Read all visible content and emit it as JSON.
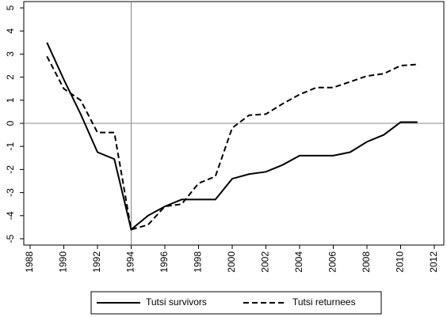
{
  "chart_data": {
    "type": "line",
    "x": [
      1989,
      1990,
      1991,
      1992,
      1993,
      1994,
      1995,
      1996,
      1997,
      1998,
      1999,
      2000,
      2001,
      2002,
      2003,
      2004,
      2005,
      2006,
      2007,
      2008,
      2009,
      2010,
      2011
    ],
    "series": [
      {
        "name": "Tutsi survivors",
        "color": "#000000",
        "dash": "solid",
        "values": [
          3.5,
          1.9,
          0.4,
          -1.25,
          -1.55,
          -4.6,
          -4.0,
          -3.6,
          -3.3,
          -3.3,
          -3.3,
          -2.4,
          -2.2,
          -2.1,
          -1.8,
          -1.4,
          -1.4,
          -1.4,
          -1.25,
          -0.8,
          -0.5,
          0.05,
          0.05
        ]
      },
      {
        "name": "Tutsi returnees",
        "color": "#000000",
        "dash": "dashed",
        "values": [
          2.9,
          1.5,
          1.0,
          -0.4,
          -0.4,
          -4.6,
          -4.4,
          -3.6,
          -3.5,
          -2.6,
          -2.3,
          -0.2,
          0.35,
          0.4,
          0.85,
          1.25,
          1.55,
          1.55,
          1.8,
          2.05,
          2.15,
          2.5,
          2.55
        ]
      }
    ],
    "xlim": [
      1988,
      2012
    ],
    "xticks": [
      1988,
      1990,
      1992,
      1994,
      1996,
      1998,
      2000,
      2002,
      2004,
      2006,
      2008,
      2010,
      2012
    ],
    "ylim": [
      -5,
      5
    ],
    "yticks": [
      -5,
      -4,
      -3,
      -2,
      -1,
      0,
      1,
      2,
      3,
      4,
      5
    ],
    "vline": 1994,
    "hline": 0,
    "legend": "bottom"
  }
}
